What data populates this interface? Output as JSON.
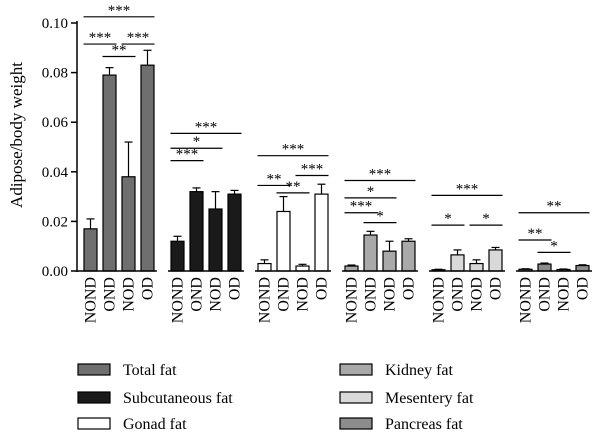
{
  "chart_data": {
    "type": "bar",
    "ylabel": "Adipose/body weight",
    "ylim": [
      0,
      0.1
    ],
    "yticks": [
      "0.00",
      "0.02",
      "0.04",
      "0.06",
      "0.08",
      "0.10"
    ],
    "categories": [
      "NOND",
      "OND",
      "NOD",
      "OD"
    ],
    "groups": [
      {
        "name": "Total fat",
        "color": "#6f6f6f",
        "values": [
          0.017,
          0.079,
          0.038,
          0.083
        ],
        "errors": [
          0.004,
          0.003,
          0.014,
          0.006
        ]
      },
      {
        "name": "Subcutaneous fat",
        "color": "#1a1a1a",
        "values": [
          0.012,
          0.032,
          0.025,
          0.031
        ],
        "errors": [
          0.002,
          0.0015,
          0.007,
          0.0015
        ]
      },
      {
        "name": "Gonad fat",
        "color": "#ffffff",
        "values": [
          0.003,
          0.024,
          0.002,
          0.031
        ],
        "errors": [
          0.0015,
          0.006,
          0.0007,
          0.004
        ]
      },
      {
        "name": "Kidney fat",
        "color": "#a9a9a9",
        "values": [
          0.002,
          0.0145,
          0.008,
          0.012
        ],
        "errors": [
          0.0004,
          0.0015,
          0.004,
          0.001
        ]
      },
      {
        "name": "Mesentery fat",
        "color": "#d9d9d9",
        "values": [
          0.0005,
          0.0065,
          0.003,
          0.0085
        ],
        "errors": [
          0.0002,
          0.002,
          0.0015,
          0.001
        ]
      },
      {
        "name": "Pancreas fat",
        "color": "#8c8c8c",
        "values": [
          0.0007,
          0.0028,
          0.0006,
          0.0022
        ],
        "errors": [
          0.0002,
          0.0004,
          0.0002,
          0.0003
        ]
      }
    ],
    "significance": [
      [
        {
          "from": 0,
          "to": 1,
          "label": "***",
          "y": 0.0915
        },
        {
          "from": 1,
          "to": 2,
          "label": "**",
          "y": 0.0865
        },
        {
          "from": 2,
          "to": 3,
          "label": "***",
          "y": 0.0915
        },
        {
          "from": 0,
          "to": 3,
          "label": "***",
          "y": 0.1025
        }
      ],
      [
        {
          "from": 0,
          "to": 1,
          "label": "***",
          "y": 0.0445
        },
        {
          "from": 0,
          "to": 2,
          "label": "*",
          "y": 0.0495
        },
        {
          "from": 0,
          "to": 3,
          "label": "***",
          "y": 0.0555
        }
      ],
      [
        {
          "from": 0,
          "to": 1,
          "label": "**",
          "y": 0.0345
        },
        {
          "from": 1,
          "to": 2,
          "label": "**",
          "y": 0.0315
        },
        {
          "from": 2,
          "to": 3,
          "label": "***",
          "y": 0.0385
        },
        {
          "from": 0,
          "to": 3,
          "label": "***",
          "y": 0.0465
        }
      ],
      [
        {
          "from": 0,
          "to": 1,
          "label": "***",
          "y": 0.0235
        },
        {
          "from": 1,
          "to": 2,
          "label": "*",
          "y": 0.0195
        },
        {
          "from": 0,
          "to": 2,
          "label": "*",
          "y": 0.0295
        },
        {
          "from": 0,
          "to": 3,
          "label": "***",
          "y": 0.0365
        }
      ],
      [
        {
          "from": 0,
          "to": 1,
          "label": "*",
          "y": 0.0185
        },
        {
          "from": 2,
          "to": 3,
          "label": "*",
          "y": 0.0185
        },
        {
          "from": 0,
          "to": 3,
          "label": "***",
          "y": 0.0305
        }
      ],
      [
        {
          "from": 0,
          "to": 1,
          "label": "**",
          "y": 0.0125
        },
        {
          "from": 1,
          "to": 2,
          "label": "*",
          "y": 0.0075
        },
        {
          "from": 0,
          "to": 3,
          "label": "**",
          "y": 0.0235
        }
      ]
    ],
    "legend": {
      "position": "bottom",
      "columns": 2
    }
  }
}
